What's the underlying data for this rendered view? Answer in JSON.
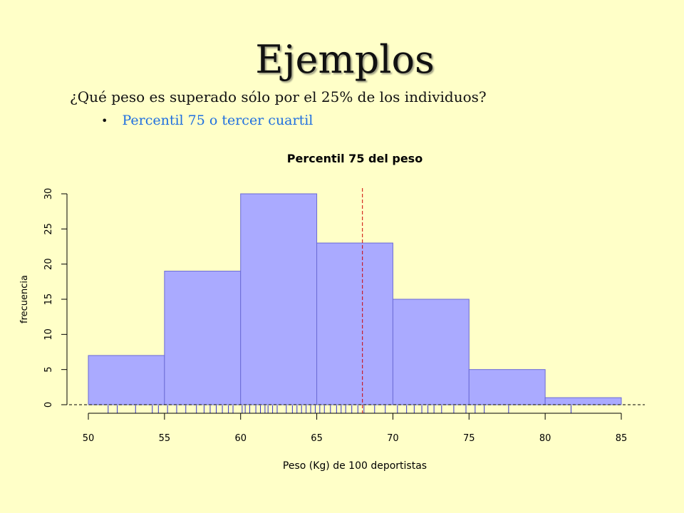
{
  "slide": {
    "title": "Ejemplos",
    "question": "¿Qué peso es superado sólo por el 25% de los individuos?",
    "bullet": "Percentil 75 o tercer cuartil"
  },
  "colors": {
    "background": "#ffffc8",
    "bars": "#aaaaff",
    "bar_border": "#6b6bd6",
    "rug": "#3333cc",
    "percentile_line": "#cc0000",
    "bullet_text": "#1f6fe0"
  },
  "chart_data": {
    "type": "bar",
    "title": "Percentil 75 del peso",
    "xlabel": "Peso (Kg) de 100 deportistas",
    "ylabel": "frecuencia",
    "bins": [
      {
        "from": 50,
        "to": 55,
        "count": 7
      },
      {
        "from": 55,
        "to": 60,
        "count": 19
      },
      {
        "from": 60,
        "to": 65,
        "count": 30
      },
      {
        "from": 65,
        "to": 70,
        "count": 23
      },
      {
        "from": 70,
        "to": 75,
        "count": 15
      },
      {
        "from": 75,
        "to": 80,
        "count": 5
      },
      {
        "from": 80,
        "to": 85,
        "count": 1
      }
    ],
    "xlim": [
      50,
      85
    ],
    "ylim": [
      0,
      30
    ],
    "xticks": [
      50,
      55,
      60,
      65,
      70,
      75,
      80,
      85
    ],
    "yticks": [
      0,
      5,
      10,
      15,
      20,
      25,
      30
    ],
    "percentile_75": 68,
    "rug": [
      51.3,
      51.9,
      53.1,
      54.2,
      54.6,
      55.2,
      55.8,
      56.4,
      57.1,
      57.6,
      58.0,
      58.4,
      58.8,
      59.2,
      59.5,
      60.1,
      60.3,
      60.6,
      61.0,
      61.3,
      61.6,
      61.8,
      62.1,
      62.4,
      63.0,
      63.4,
      63.7,
      64.0,
      64.3,
      64.6,
      64.9,
      65.2,
      65.5,
      65.9,
      66.3,
      66.6,
      66.9,
      67.3,
      67.7,
      68.1,
      68.8,
      69.5,
      70.3,
      70.9,
      71.4,
      71.9,
      72.3,
      72.7,
      73.2,
      74.0,
      74.8,
      75.4,
      76.0,
      77.6,
      81.7
    ]
  }
}
